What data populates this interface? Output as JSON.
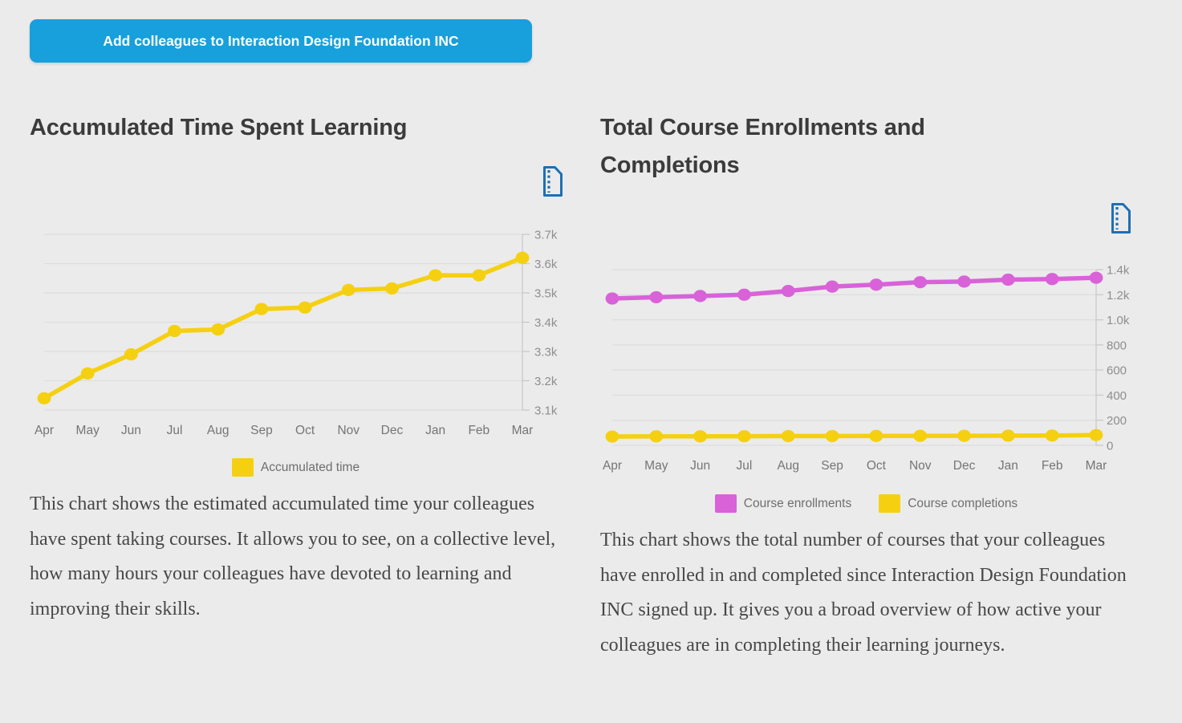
{
  "page": {
    "background": "#EBEBEB"
  },
  "add_button": {
    "label": "Add colleagues to Interaction Design Foundation INC",
    "color": "#17A0DB"
  },
  "left_panel": {
    "title": "Accumulated Time Spent Learning",
    "export_icon": "export-file-icon",
    "description": "This chart shows the estimated accumulated time your colleagues have spent taking courses. It allows you to see, on a collective level, how many hours your colleagues have devoted to learning and improving their skills."
  },
  "right_panel": {
    "title": "Total Course Enrollments and Completions",
    "export_icon": "export-file-icon",
    "description": "This chart shows the total number of courses that your colleagues have enrolled in and completed since Interaction Design Foundation INC signed up. It gives you a broad overview of how active your colleagues are in completing their learning journeys."
  },
  "colors": {
    "accent_blue": "#17A0DB",
    "icon_blue": "#1E6FB4",
    "yellow": "#F5D011",
    "magenta": "#D962D9",
    "gridline": "#DDDDDD",
    "axis": "#C9C9C9"
  },
  "chart_data": [
    {
      "type": "line",
      "title": "Accumulated Time Spent Learning",
      "categories": [
        "Apr",
        "May",
        "Jun",
        "Jul",
        "Aug",
        "Sep",
        "Oct",
        "Nov",
        "Dec",
        "Jan",
        "Feb",
        "Mar"
      ],
      "series": [
        {
          "name": "Accumulated time",
          "color": "#F5D011",
          "values": [
            3140,
            3225,
            3290,
            3370,
            3375,
            3445,
            3450,
            3510,
            3515,
            3560,
            3560,
            3620
          ]
        }
      ],
      "ylim": [
        3100,
        3700
      ],
      "yticks": [
        3700,
        3600,
        3500,
        3400,
        3300,
        3200,
        3100
      ],
      "ytick_labels": [
        "3.7k",
        "3.6k",
        "3.5k",
        "3.4k",
        "3.3k",
        "3.2k",
        "3.1k"
      ],
      "grid": true,
      "axis_side": "right",
      "legend_position": "bottom"
    },
    {
      "type": "line",
      "title": "Total Course Enrollments and Completions",
      "categories": [
        "Apr",
        "May",
        "Jun",
        "Jul",
        "Aug",
        "Sep",
        "Oct",
        "Nov",
        "Dec",
        "Jan",
        "Feb",
        "Mar"
      ],
      "series": [
        {
          "name": "Course enrollments",
          "color": "#D962D9",
          "values": [
            1170,
            1180,
            1190,
            1200,
            1230,
            1265,
            1280,
            1300,
            1305,
            1320,
            1325,
            1335
          ]
        },
        {
          "name": "Course completions",
          "color": "#F5D011",
          "values": [
            70,
            72,
            72,
            73,
            74,
            74,
            75,
            76,
            76,
            77,
            78,
            82
          ]
        }
      ],
      "ylim": [
        0,
        1400
      ],
      "yticks": [
        1400,
        1200,
        1000,
        800,
        600,
        400,
        200,
        0
      ],
      "ytick_labels": [
        "1.4k",
        "1.2k",
        "1.0k",
        "800",
        "600",
        "400",
        "200",
        "0"
      ],
      "grid": true,
      "axis_side": "right",
      "legend_position": "bottom"
    }
  ]
}
